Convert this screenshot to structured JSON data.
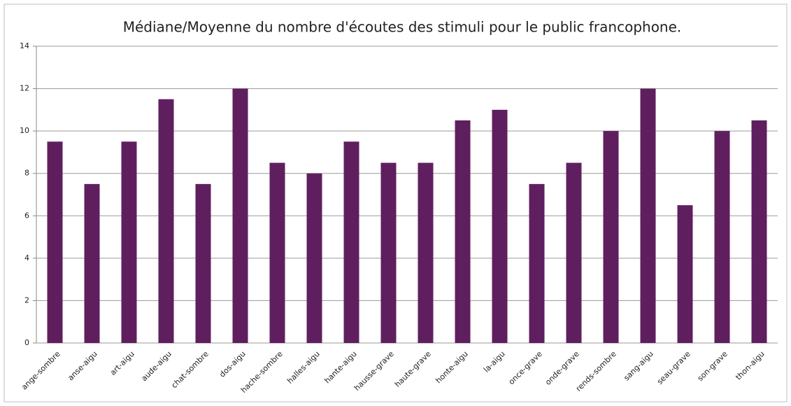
{
  "chart_data": {
    "type": "bar",
    "title": "Médiane/Moyenne du nombre d'écoutes des stimuli pour le public francophone.",
    "categories": [
      "ange-sombre",
      "anse-aigu",
      "art-aigu",
      "aude-aigu",
      "chat-sombre",
      "dos-aigu",
      "hache-sombre",
      "halles-aigu",
      "hante-aigu",
      "hausse-grave",
      "haute-grave",
      "honte-aigu",
      "la-aigu",
      "once-grave",
      "onde-grave",
      "rends-sombre",
      "sang-aigu",
      "seau-grave",
      "son-grave",
      "thon-aigu"
    ],
    "values": [
      9.5,
      7.5,
      9.5,
      11.5,
      7.5,
      12,
      8.5,
      8,
      9.5,
      8.5,
      8.5,
      10.5,
      11,
      7.5,
      8.5,
      10,
      12,
      6.5,
      10,
      10.5
    ],
    "color": "#5f1f5f",
    "ylim": [
      0,
      14
    ],
    "yticks": [
      0,
      2,
      4,
      6,
      8,
      10,
      12,
      14
    ],
    "grid": true
  }
}
